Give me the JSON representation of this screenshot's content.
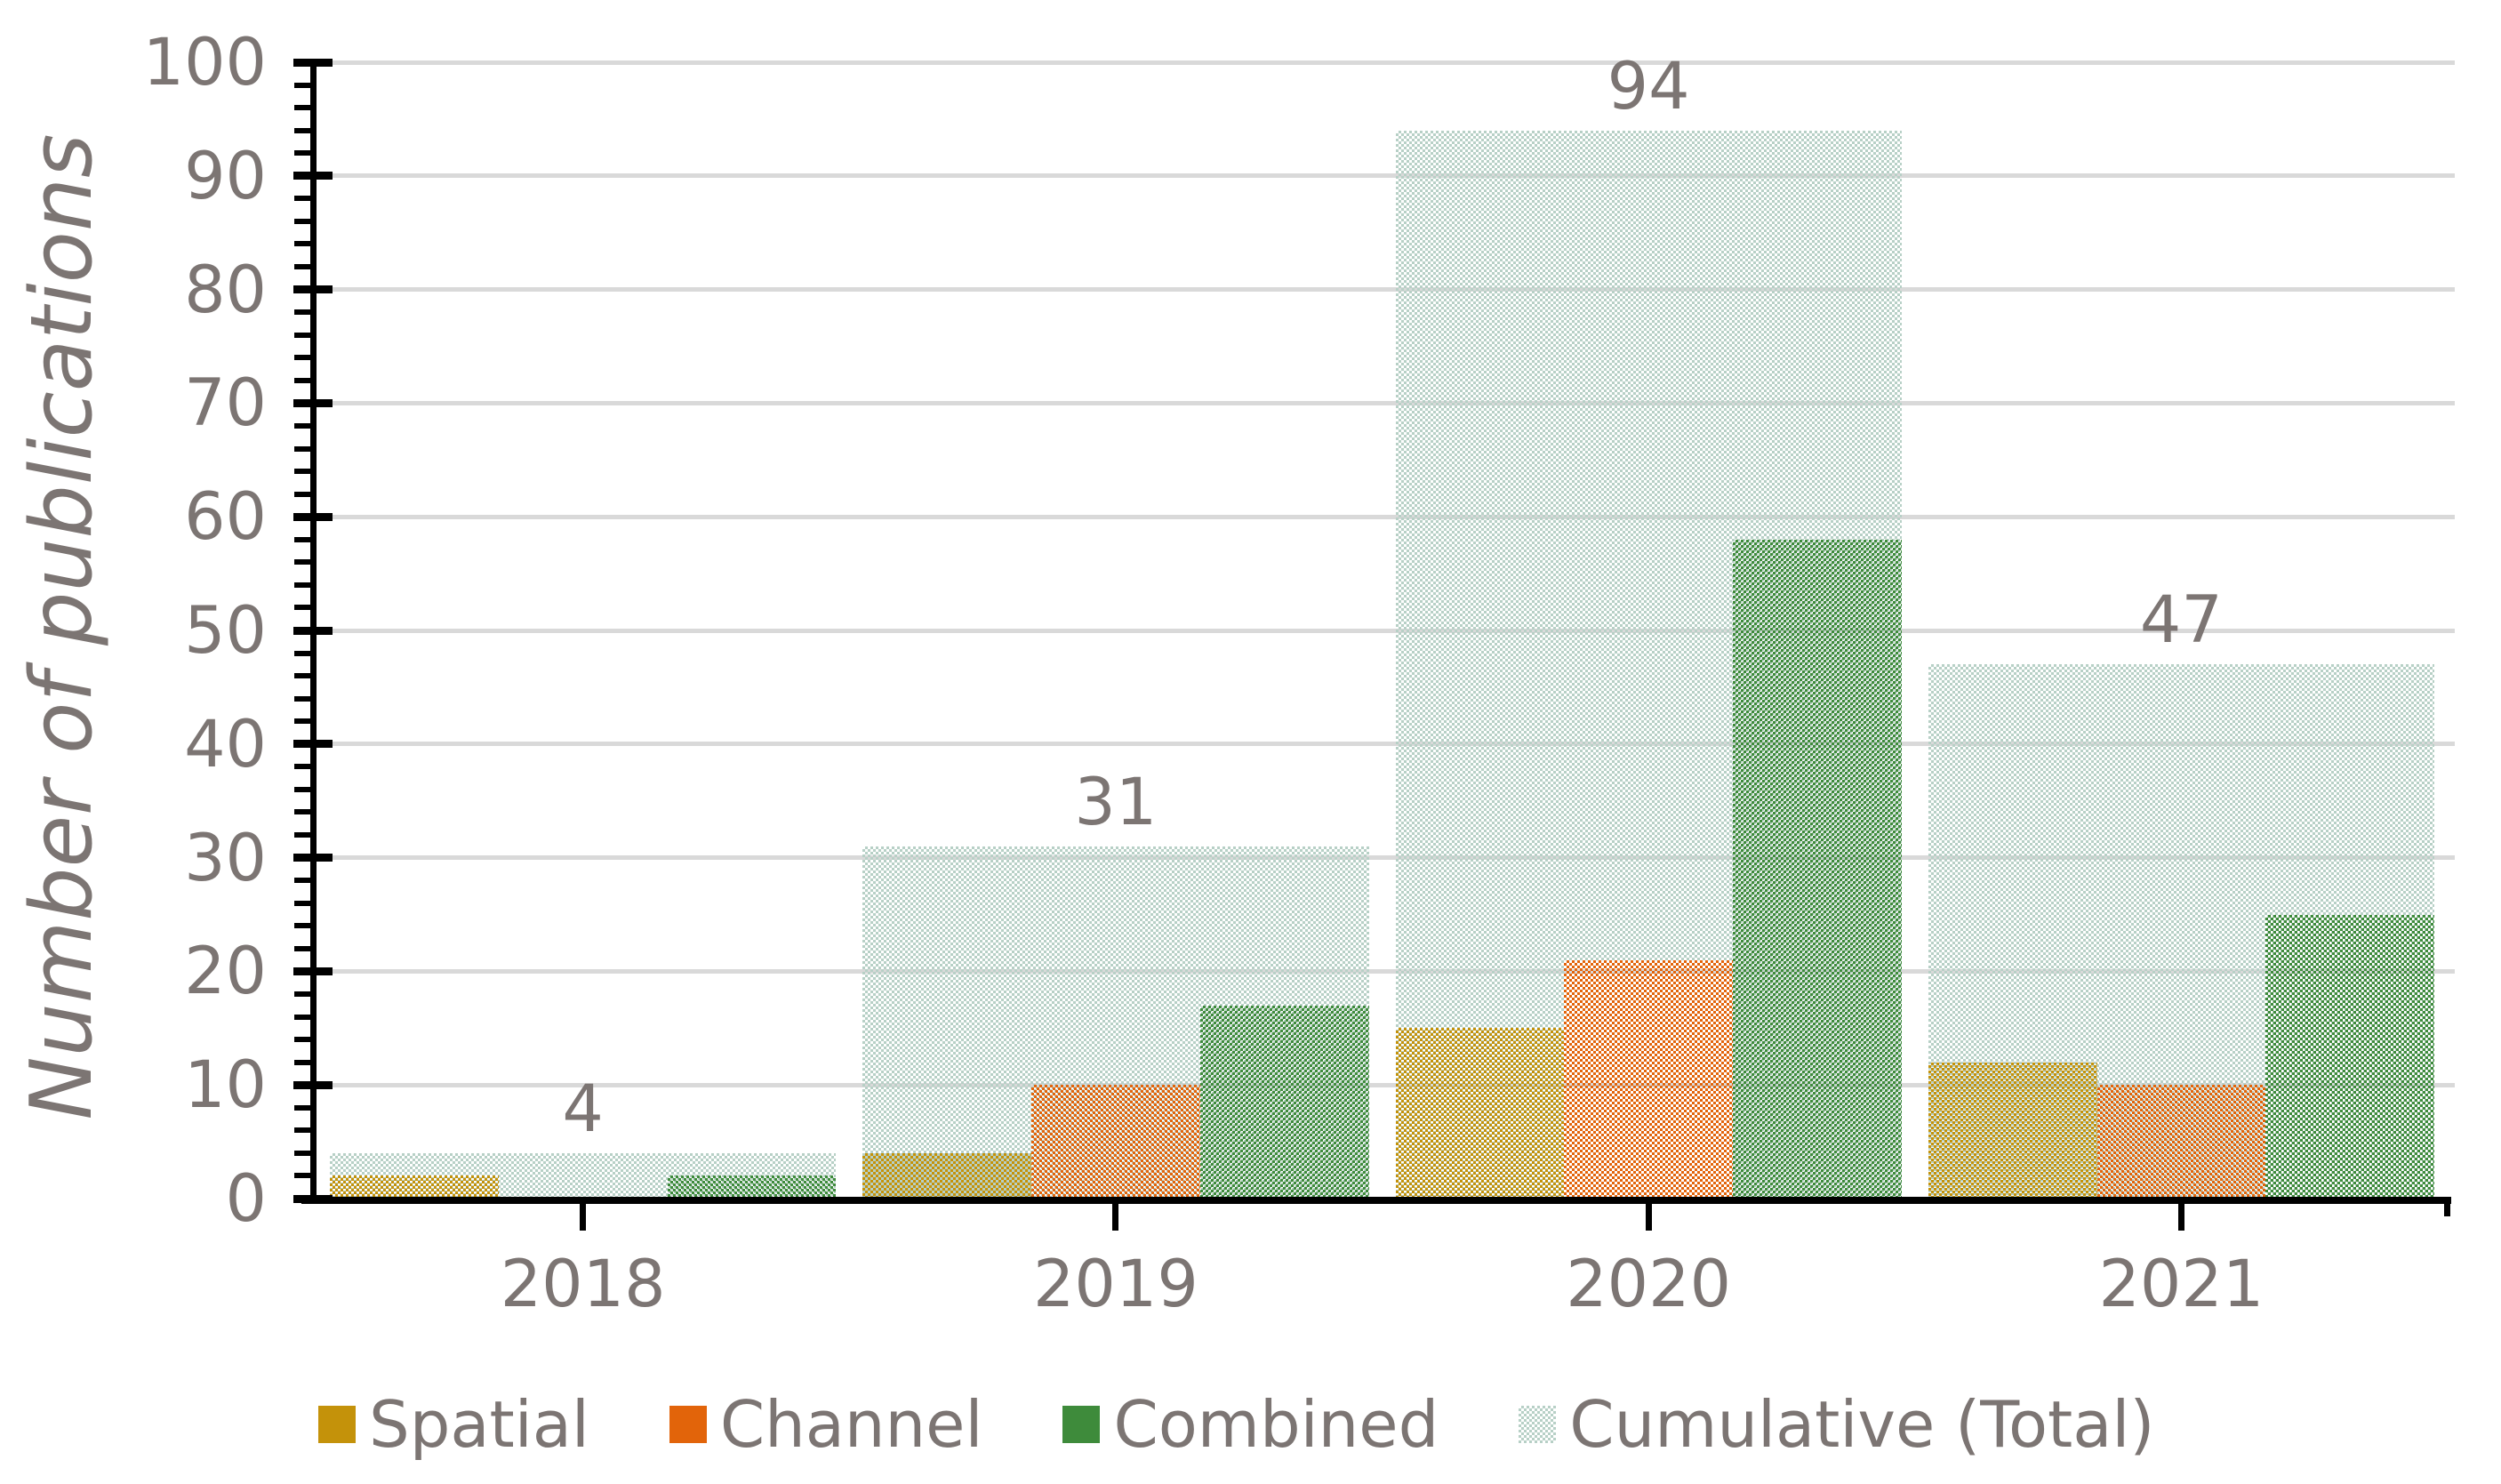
{
  "chart_data": {
    "type": "bar",
    "title": "",
    "xlabel": "",
    "ylabel": "Number of publications",
    "categories": [
      "2018",
      "2019",
      "2020",
      "2021"
    ],
    "series": [
      {
        "name": "Spatial",
        "color": "#c4920a",
        "values": [
          2,
          4,
          15,
          12
        ]
      },
      {
        "name": "Channel",
        "color": "#e2640a",
        "values": [
          0,
          10,
          21,
          10
        ]
      },
      {
        "name": "Combined",
        "color": "#3e8b3b",
        "values": [
          2,
          17,
          58,
          25
        ]
      }
    ],
    "cumulative": {
      "name": "Cumulative (Total)",
      "color": "#b7d0c6",
      "values": [
        4,
        31,
        94,
        47
      ],
      "data_labels": [
        "4",
        "31",
        "94",
        "47"
      ]
    },
    "ylim": [
      0,
      100
    ],
    "ytick_step": 10,
    "yminor_step": 2,
    "grid": true,
    "legend_position": "bottom"
  },
  "styles": {
    "text_color": "#7c7573",
    "grid_color": "#d9d9d9",
    "axis_color": "#000000",
    "background": "#ffffff"
  }
}
